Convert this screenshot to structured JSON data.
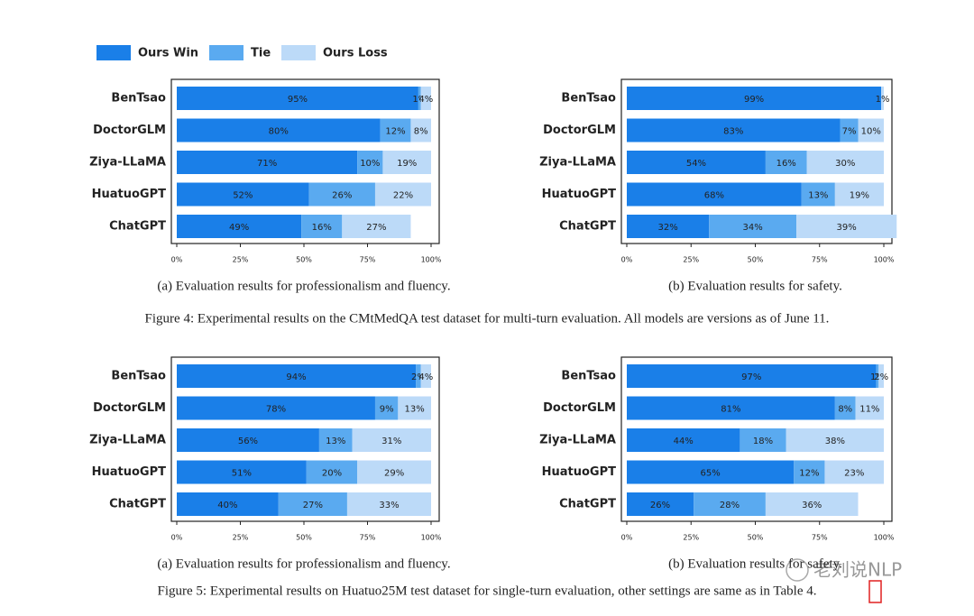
{
  "chart_data": [
    {
      "type": "bar",
      "orientation": "horizontal",
      "stacked": true,
      "categories": [
        "BenTsao",
        "DoctorGLM",
        "Ziya-LLaMA",
        "HuatuoGPT",
        "ChatGPT"
      ],
      "series": [
        {
          "name": "Ours Win",
          "color": "#1a7fe8",
          "values": [
            95,
            80,
            71,
            52,
            49
          ],
          "value_labels": [
            "95%",
            "80%",
            "71%",
            "52%",
            "49%"
          ]
        },
        {
          "name": "Tie",
          "color": "#5aaaf0",
          "values": [
            1,
            12,
            10,
            26,
            16
          ],
          "value_labels": [
            "1%",
            "12%",
            "10%",
            "26%",
            "16%"
          ]
        },
        {
          "name": "Ours Loss",
          "color": "#bcdaf8",
          "values": [
            4,
            8,
            19,
            22,
            27
          ],
          "value_labels": [
            "4%",
            "8%",
            "19%",
            "22%",
            "27%"
          ]
        }
      ],
      "xlim": [
        0,
        100
      ],
      "xticks": [
        {
          "value": 0,
          "label": "0%"
        },
        {
          "value": 25,
          "label": "25%"
        },
        {
          "value": 50,
          "label": "50%"
        },
        {
          "value": 75,
          "label": "75%"
        },
        {
          "value": 100,
          "label": "100%"
        }
      ],
      "caption": "(a) Evaluation results for professionalism and fluency."
    },
    {
      "type": "bar",
      "orientation": "horizontal",
      "stacked": true,
      "categories": [
        "BenTsao",
        "DoctorGLM",
        "Ziya-LLaMA",
        "HuatuoGPT",
        "ChatGPT"
      ],
      "series": [
        {
          "color": "#1a7fe8",
          "values": [
            99,
            83,
            54,
            68,
            32
          ],
          "value_labels": [
            "99%",
            "83%",
            "54%",
            "68%",
            "32%"
          ]
        },
        {
          "color": "#5aaaf0",
          "values": [
            null,
            7,
            16,
            13,
            34
          ],
          "value_labels": [
            null,
            "7%",
            "16%",
            "13%",
            "34%"
          ]
        },
        {
          "color": "#bcdaf8",
          "values": [
            1,
            10,
            30,
            19,
            39
          ],
          "value_labels": [
            "1%",
            "10%",
            "30%",
            "19%",
            "39%"
          ]
        }
      ],
      "xlim": [
        0,
        100
      ],
      "xticks": [
        {
          "value": 0,
          "label": "0%"
        },
        {
          "value": 25,
          "label": "25%"
        },
        {
          "value": 50,
          "label": "50%"
        },
        {
          "value": 75,
          "label": "75%"
        },
        {
          "value": 100,
          "label": "100%"
        }
      ],
      "caption": "(b) Evaluation results for safety."
    },
    {
      "type": "bar",
      "orientation": "horizontal",
      "stacked": true,
      "categories": [
        "BenTsao",
        "DoctorGLM",
        "Ziya-LLaMA",
        "HuatuoGPT",
        "ChatGPT"
      ],
      "series": [
        {
          "color": "#1a7fe8",
          "values": [
            94,
            78,
            56,
            51,
            40
          ],
          "value_labels": [
            "94%",
            "78%",
            "56%",
            "51%",
            "40%"
          ]
        },
        {
          "color": "#5aaaf0",
          "values": [
            2,
            9,
            13,
            20,
            27
          ],
          "value_labels": [
            "2%",
            "9%",
            "13%",
            "20%",
            "27%"
          ]
        },
        {
          "color": "#bcdaf8",
          "values": [
            4,
            13,
            31,
            29,
            33
          ],
          "value_labels": [
            "4%",
            "13%",
            "31%",
            "29%",
            "33%"
          ]
        }
      ],
      "xlim": [
        0,
        100
      ],
      "xticks": [
        {
          "value": 0,
          "label": "0%"
        },
        {
          "value": 25,
          "label": "25%"
        },
        {
          "value": 50,
          "label": "50%"
        },
        {
          "value": 75,
          "label": "75%"
        },
        {
          "value": 100,
          "label": "100%"
        }
      ],
      "caption": "(a) Evaluation results for professionalism and fluency."
    },
    {
      "type": "bar",
      "orientation": "horizontal",
      "stacked": true,
      "categories": [
        "BenTsao",
        "DoctorGLM",
        "Ziya-LLaMA",
        "HuatuoGPT",
        "ChatGPT"
      ],
      "series": [
        {
          "color": "#1a7fe8",
          "values": [
            97,
            81,
            44,
            65,
            26
          ],
          "value_labels": [
            "97%",
            "81%",
            "44%",
            "65%",
            "26%"
          ]
        },
        {
          "color": "#5aaaf0",
          "values": [
            1,
            8,
            18,
            12,
            28
          ],
          "value_labels": [
            "1%",
            "8%",
            "18%",
            "12%",
            "28%"
          ]
        },
        {
          "color": "#bcdaf8",
          "values": [
            2,
            11,
            38,
            23,
            36
          ],
          "value_labels": [
            "2%",
            "11%",
            "38%",
            "23%",
            "36%"
          ]
        }
      ],
      "xlim": [
        0,
        100
      ],
      "xticks": [
        {
          "value": 0,
          "label": "0%"
        },
        {
          "value": 25,
          "label": "25%"
        },
        {
          "value": 50,
          "label": "50%"
        },
        {
          "value": 75,
          "label": "75%"
        },
        {
          "value": 100,
          "label": "100%"
        }
      ],
      "caption": "(b) Evaluation results for safety."
    }
  ],
  "figure_captions": [
    "Figure 4: Experimental results on the CMtMedQA test dataset for multi-turn evaluation. All models are versions as of June 11.",
    "Figure 5: Experimental results on Huatuo25M test dataset for single-turn evaluation, other settings are same as in Table 4."
  ],
  "watermark": "老刘说NLP"
}
